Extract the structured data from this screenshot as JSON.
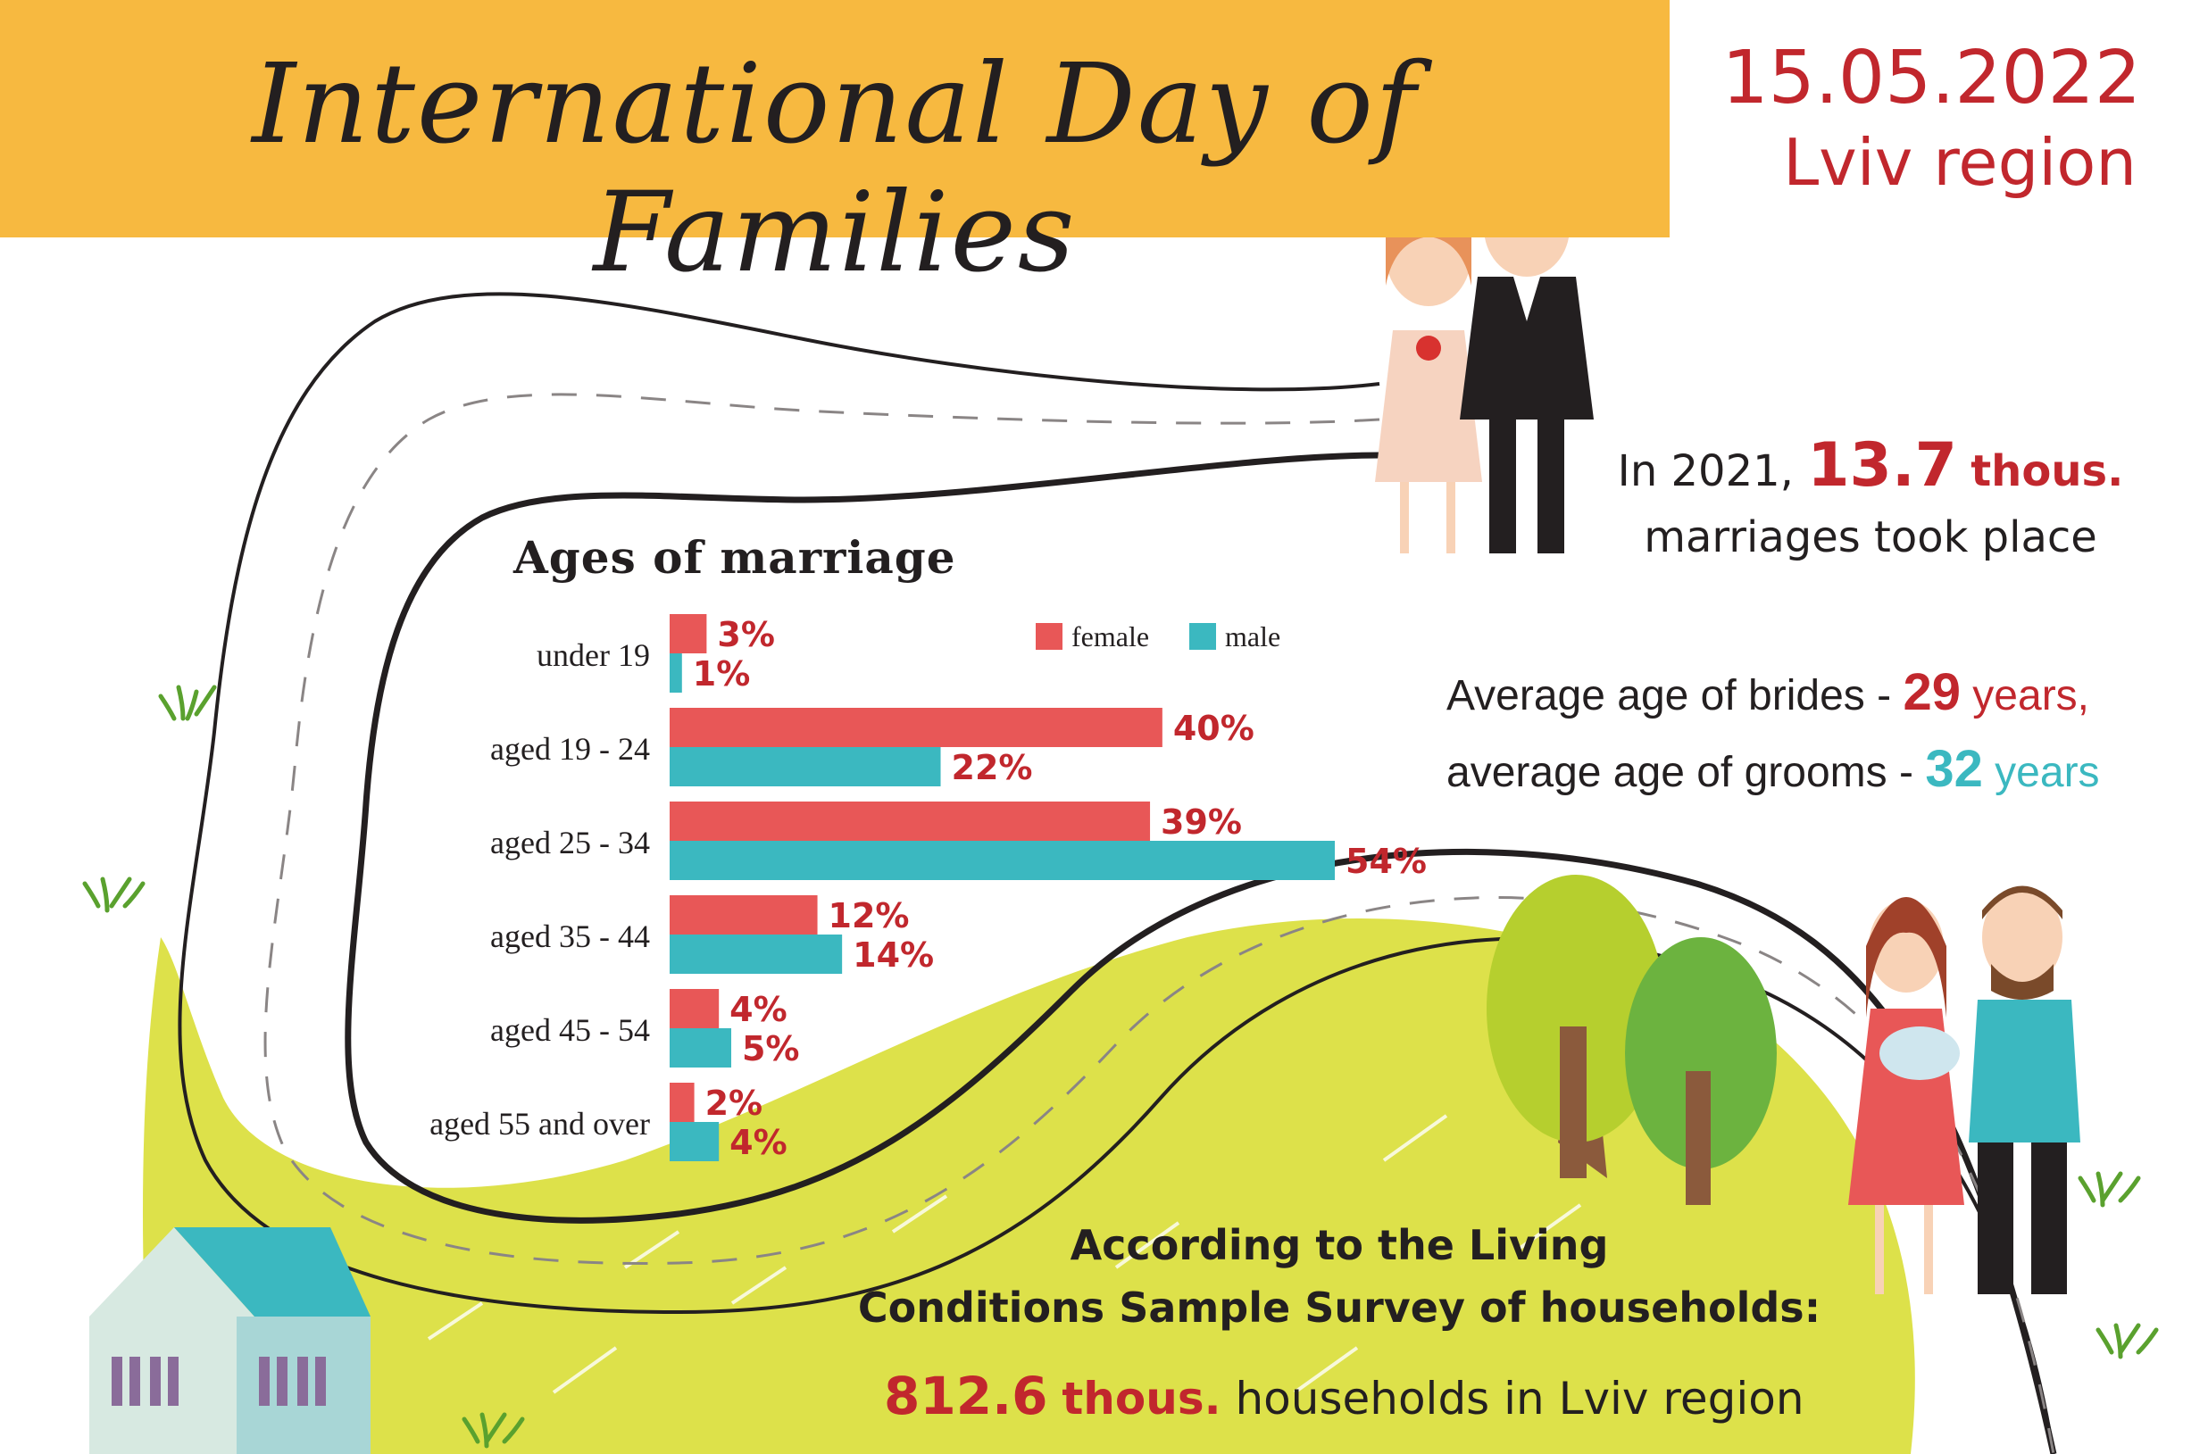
{
  "header": {
    "title": "International Day of Families",
    "date": "15.05.2022",
    "region": "Lviv region"
  },
  "marriages": {
    "prefix": "In 2021,",
    "value": "13.7",
    "unit": "thous.",
    "suffix": "marriages took place"
  },
  "average_age": {
    "brides_label": "Average age of brides -",
    "brides_value": "29",
    "brides_unit": "years,",
    "grooms_label": "average age of grooms -",
    "grooms_value": "32",
    "grooms_unit": "years"
  },
  "survey": {
    "line1": "According to the Living",
    "line2": "Conditions Sample Survey of households:",
    "households_value": "812.6",
    "households_unit": "thous.",
    "households_text": "households in Lviv region"
  },
  "colors": {
    "female": "#e85757",
    "male": "#3bb8c0",
    "accent": "#c1272d",
    "banner": "#f7b940",
    "meadow": "#dde14a"
  },
  "chart_data": {
    "type": "bar",
    "orientation": "horizontal",
    "title": "Ages of marriage",
    "categories": [
      "under 19",
      "aged 19 - 24",
      "aged 25 - 34",
      "aged 35 - 44",
      "aged 45 - 54",
      "aged 55 and over"
    ],
    "series": [
      {
        "name": "female",
        "values": [
          3,
          40,
          39,
          12,
          4,
          2
        ],
        "labels": [
          "3%",
          "40%",
          "39%",
          "12%",
          "4%",
          "2%"
        ]
      },
      {
        "name": "male",
        "values": [
          1,
          22,
          54,
          14,
          5,
          4
        ],
        "labels": [
          "1%",
          "22%",
          "54%",
          "14%",
          "5%",
          "4%"
        ]
      }
    ],
    "legend": {
      "position": "top-right"
    },
    "xlim": [
      0,
      54
    ],
    "grid": false
  }
}
